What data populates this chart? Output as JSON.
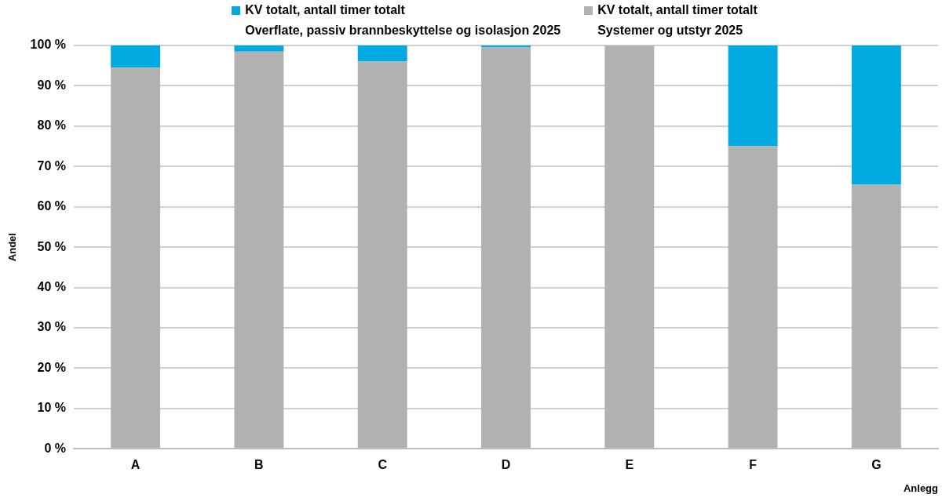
{
  "chart_data": {
    "type": "bar",
    "stacked": true,
    "categories": [
      "A",
      "B",
      "C",
      "D",
      "E",
      "F",
      "G"
    ],
    "series": [
      {
        "name": "KV totalt, antall timer totalt\nSystemer og utstyr 2025",
        "color": "#b1b2b0",
        "values": [
          94.5,
          98.5,
          96,
          99.5,
          100,
          75,
          65.5
        ]
      },
      {
        "name": "KV totalt, antall timer totalt\nOverflate, passiv brannbeskyttelse og isolasjon 2025",
        "color": "#00a9e0",
        "values": [
          5.5,
          1.5,
          4,
          0.5,
          0,
          25,
          34.5
        ]
      }
    ],
    "ylim": [
      0,
      100
    ],
    "yticks": [
      {
        "value": 0,
        "label": "0 %"
      },
      {
        "value": 10,
        "label": "10 %"
      },
      {
        "value": 20,
        "label": "20 %"
      },
      {
        "value": 30,
        "label": "30 %"
      },
      {
        "value": 40,
        "label": "40 %"
      },
      {
        "value": 50,
        "label": "50 %"
      },
      {
        "value": 60,
        "label": "60 %"
      },
      {
        "value": 70,
        "label": "70 %"
      },
      {
        "value": 80,
        "label": "80 %"
      },
      {
        "value": 90,
        "label": "90 %"
      },
      {
        "value": 100,
        "label": "100 %"
      }
    ],
    "xlabel": "Anlegg",
    "ylabel": "Andel",
    "grid": "y",
    "legend": "top"
  }
}
